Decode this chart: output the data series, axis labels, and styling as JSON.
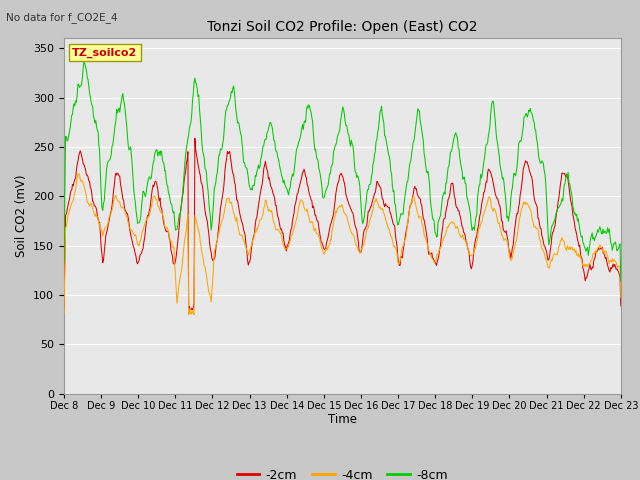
{
  "title": "Tonzi Soil CO2 Profile: Open (East) CO2",
  "top_left_text": "No data for f_CO2E_4",
  "ylabel": "Soil CO2 (mV)",
  "xlabel": "Time",
  "legend_label": "TZ_soilco2",
  "series_labels": [
    "-2cm",
    "-4cm",
    "-8cm"
  ],
  "series_colors": [
    "#dd0000",
    "#ffa500",
    "#00cc00"
  ],
  "ylim": [
    0,
    360
  ],
  "yticks": [
    0,
    50,
    100,
    150,
    200,
    250,
    300,
    350
  ],
  "x_labels": [
    "Dec 8",
    "Dec 9",
    "Dec 10",
    "Dec 11",
    "Dec 12",
    "Dec 13",
    "Dec 14",
    "Dec 15",
    "Dec 16",
    "Dec 17",
    "Dec 18",
    "Dec 19",
    "Dec 20",
    "Dec 21",
    "Dec 22",
    "Dec 23"
  ],
  "n_days": 15,
  "fig_bg_color": "#c8c8c8",
  "plot_bg_color": "#e8e8e8",
  "grid_color": "#ffffff"
}
